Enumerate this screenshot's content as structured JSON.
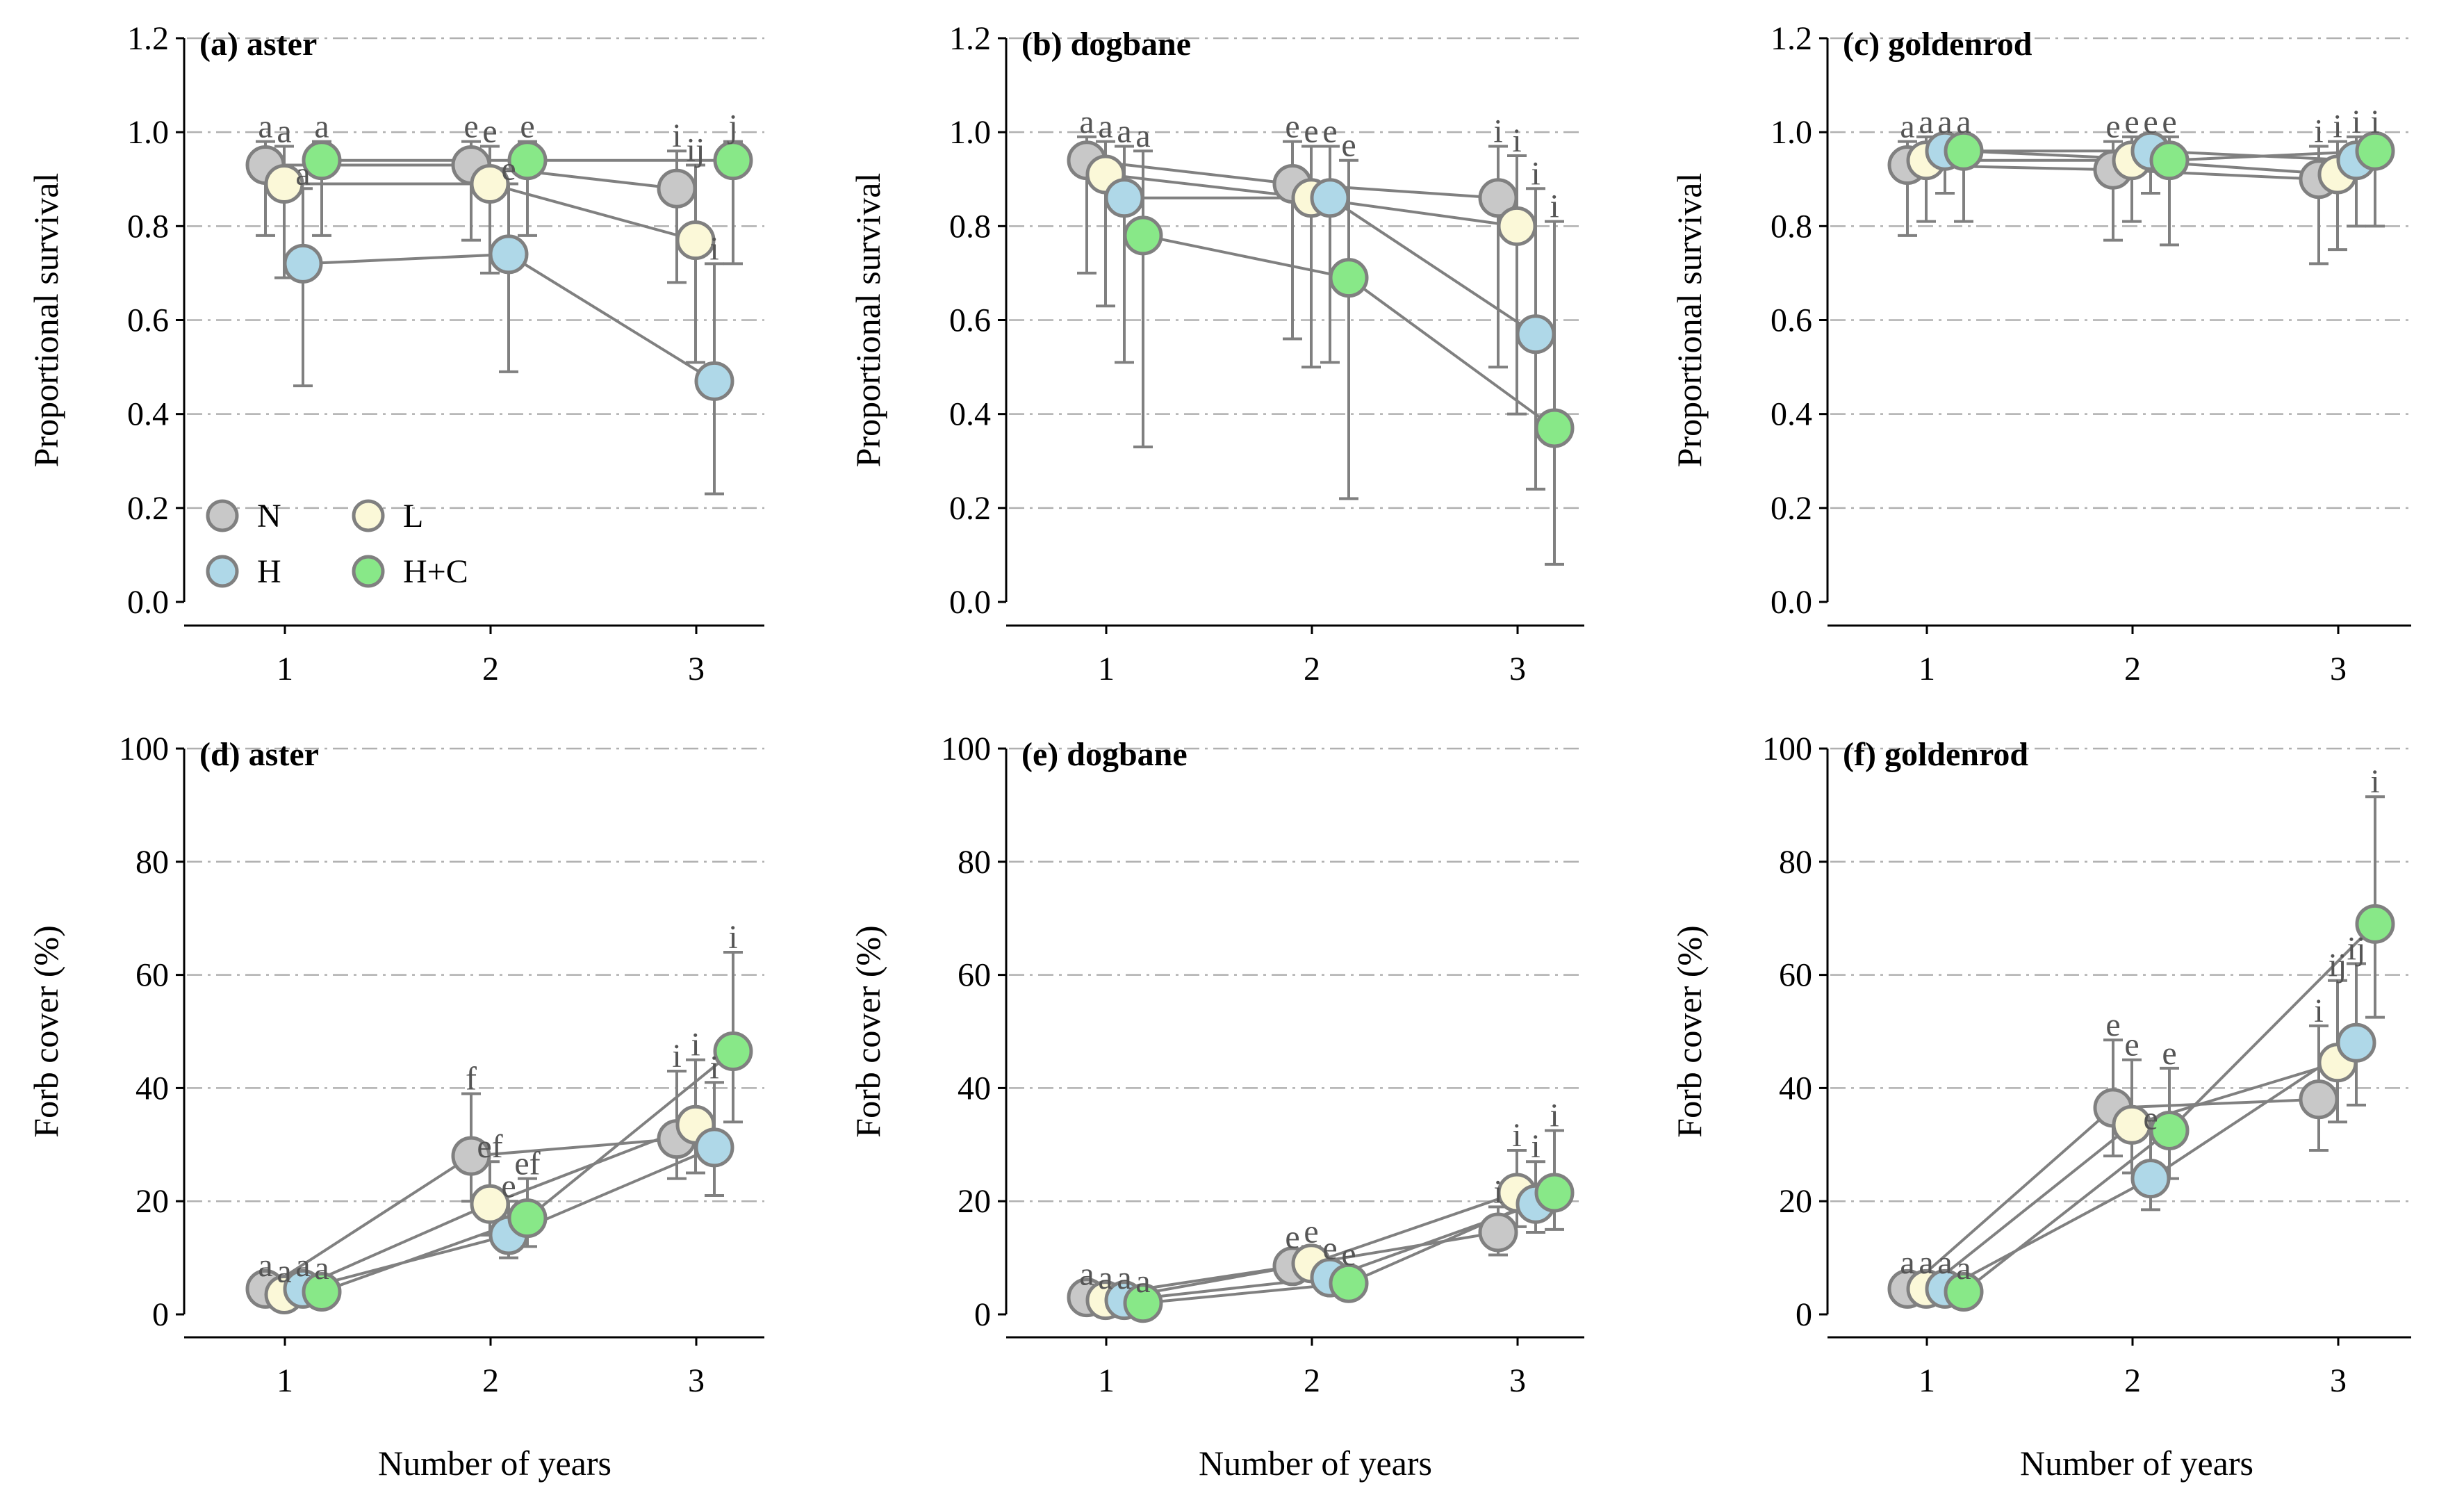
{
  "figure": {
    "x_axis_label": "Number of years",
    "legend": [
      {
        "key": "N",
        "label": "N",
        "color": "#c8c8c8"
      },
      {
        "key": "L",
        "label": "L",
        "color": "#fbf8d8"
      },
      {
        "key": "H",
        "label": "H",
        "color": "#afd8e8"
      },
      {
        "key": "HC",
        "label": "H+C",
        "color": "#88e888"
      }
    ]
  },
  "chart_data": [
    {
      "panel": "(a) aster",
      "type": "scatter",
      "ylabel": "Proportional survival",
      "ylim": [
        0,
        1.2
      ],
      "yticks": [
        "0.0",
        "0.2",
        "0.4",
        "0.6",
        "0.8",
        "1.0",
        "1.2"
      ],
      "x": [
        1,
        2,
        3
      ],
      "xticks": [
        "1",
        "2",
        "3"
      ],
      "show_legend": true,
      "series": [
        {
          "name": "N",
          "values": [
            0.93,
            0.93,
            0.88
          ],
          "err_low": [
            0.78,
            0.77,
            0.68
          ],
          "err_high": [
            0.98,
            0.98,
            0.96
          ],
          "letters": [
            "a",
            "e",
            "i"
          ]
        },
        {
          "name": "L",
          "values": [
            0.89,
            0.89,
            0.77
          ],
          "err_low": [
            0.69,
            0.7,
            0.51
          ],
          "err_high": [
            0.97,
            0.97,
            0.93
          ],
          "letters": [
            "a",
            "e",
            "ij"
          ]
        },
        {
          "name": "H",
          "values": [
            0.72,
            0.74,
            0.47
          ],
          "err_low": [
            0.46,
            0.49,
            0.23
          ],
          "err_high": [
            0.88,
            0.89,
            0.72
          ],
          "letters": [
            "a",
            "e",
            "i"
          ]
        },
        {
          "name": "H+C",
          "values": [
            0.94,
            0.94,
            0.94
          ],
          "err_low": [
            0.78,
            0.78,
            0.72
          ],
          "err_high": [
            0.98,
            0.98,
            0.98
          ],
          "letters": [
            "a",
            "e",
            "j"
          ]
        }
      ]
    },
    {
      "panel": "(b) dogbane",
      "type": "scatter",
      "ylabel": "Proportional survival",
      "ylim": [
        0,
        1.2
      ],
      "yticks": [
        "0.0",
        "0.2",
        "0.4",
        "0.6",
        "0.8",
        "1.0",
        "1.2"
      ],
      "x": [
        1,
        2,
        3
      ],
      "xticks": [
        "1",
        "2",
        "3"
      ],
      "show_legend": false,
      "series": [
        {
          "name": "N",
          "values": [
            0.94,
            0.89,
            0.86
          ],
          "err_low": [
            0.7,
            0.56,
            0.5
          ],
          "err_high": [
            0.99,
            0.98,
            0.97
          ],
          "letters": [
            "a",
            "e",
            "i"
          ]
        },
        {
          "name": "L",
          "values": [
            0.91,
            0.86,
            0.8
          ],
          "err_low": [
            0.63,
            0.5,
            0.4
          ],
          "err_high": [
            0.98,
            0.97,
            0.95
          ],
          "letters": [
            "a",
            "e",
            "i"
          ]
        },
        {
          "name": "H",
          "values": [
            0.86,
            0.86,
            0.57
          ],
          "err_low": [
            0.51,
            0.51,
            0.24
          ],
          "err_high": [
            0.97,
            0.97,
            0.88
          ],
          "letters": [
            "a",
            "e",
            "i"
          ]
        },
        {
          "name": "H+C",
          "values": [
            0.78,
            0.69,
            0.37
          ],
          "err_low": [
            0.33,
            0.22,
            0.08
          ],
          "err_high": [
            0.96,
            0.94,
            0.81
          ],
          "letters": [
            "a",
            "e",
            "i"
          ]
        }
      ]
    },
    {
      "panel": "(c) goldenrod",
      "type": "scatter",
      "ylabel": "Proportional survival",
      "ylim": [
        0,
        1.2
      ],
      "yticks": [
        "0.0",
        "0.2",
        "0.4",
        "0.6",
        "0.8",
        "1.0",
        "1.2"
      ],
      "x": [
        1,
        2,
        3
      ],
      "xticks": [
        "1",
        "2",
        "3"
      ],
      "show_legend": false,
      "series": [
        {
          "name": "N",
          "values": [
            0.93,
            0.92,
            0.9
          ],
          "err_low": [
            0.78,
            0.77,
            0.72
          ],
          "err_high": [
            0.98,
            0.98,
            0.97
          ],
          "letters": [
            "a",
            "e",
            "i"
          ]
        },
        {
          "name": "L",
          "values": [
            0.94,
            0.94,
            0.91
          ],
          "err_low": [
            0.81,
            0.81,
            0.75
          ],
          "err_high": [
            0.99,
            0.99,
            0.98
          ],
          "letters": [
            "a",
            "e",
            "i"
          ]
        },
        {
          "name": "H",
          "values": [
            0.96,
            0.96,
            0.94
          ],
          "err_low": [
            0.87,
            0.87,
            0.8
          ],
          "err_high": [
            0.99,
            0.99,
            0.99
          ],
          "letters": [
            "a",
            "e",
            "i"
          ]
        },
        {
          "name": "H+C",
          "values": [
            0.96,
            0.94,
            0.96
          ],
          "err_low": [
            0.81,
            0.76,
            0.8
          ],
          "err_high": [
            0.99,
            0.99,
            0.99
          ],
          "letters": [
            "a",
            "e",
            "i"
          ]
        }
      ]
    },
    {
      "panel": "(d) aster",
      "type": "scatter",
      "ylabel": "Forb cover (%)",
      "ylim": [
        0,
        100
      ],
      "yticks": [
        "0",
        "20",
        "40",
        "60",
        "80",
        "100"
      ],
      "x": [
        1,
        2,
        3
      ],
      "xticks": [
        "1",
        "2",
        "3"
      ],
      "show_legend": false,
      "series": [
        {
          "name": "N",
          "values": [
            4.5,
            28,
            31
          ],
          "err_low": [
            3.0,
            20,
            24
          ],
          "err_high": [
            6.0,
            39,
            43
          ],
          "letters": [
            "a",
            "f",
            "i"
          ]
        },
        {
          "name": "L",
          "values": [
            3.5,
            19.5,
            33.5
          ],
          "err_low": [
            2.5,
            14,
            25
          ],
          "err_high": [
            5.0,
            27,
            45
          ],
          "letters": [
            "a",
            "ef",
            "i"
          ]
        },
        {
          "name": "H",
          "values": [
            4.5,
            14,
            29.5
          ],
          "err_low": [
            3.0,
            10,
            21
          ],
          "err_high": [
            6.0,
            20,
            41
          ],
          "letters": [
            "a",
            "e",
            "i"
          ]
        },
        {
          "name": "H+C",
          "values": [
            4.0,
            17,
            46.5
          ],
          "err_low": [
            3.0,
            12,
            34
          ],
          "err_high": [
            5.5,
            24,
            64
          ],
          "letters": [
            "a",
            "ef",
            "i"
          ]
        }
      ]
    },
    {
      "panel": "(e) dogbane",
      "type": "scatter",
      "ylabel": "Forb cover (%)",
      "ylim": [
        0,
        100
      ],
      "yticks": [
        "0",
        "20",
        "40",
        "60",
        "80",
        "100"
      ],
      "x": [
        1,
        2,
        3
      ],
      "xticks": [
        "1",
        "2",
        "3"
      ],
      "show_legend": false,
      "series": [
        {
          "name": "N",
          "values": [
            3.0,
            8.5,
            14.5
          ],
          "err_low": [
            1.8,
            6.0,
            10.5
          ],
          "err_high": [
            4.5,
            11.0,
            19.0
          ],
          "letters": [
            "a",
            "e",
            "i"
          ]
        },
        {
          "name": "L",
          "values": [
            2.5,
            9.0,
            21.5
          ],
          "err_low": [
            1.5,
            6.5,
            15.5
          ],
          "err_high": [
            3.8,
            12.0,
            29.0
          ],
          "letters": [
            "a",
            "e",
            "i"
          ]
        },
        {
          "name": "H",
          "values": [
            2.5,
            6.5,
            19.5
          ],
          "err_low": [
            1.5,
            4.5,
            14.5
          ],
          "err_high": [
            3.8,
            9.0,
            27.0
          ],
          "letters": [
            "a",
            "e",
            "i"
          ]
        },
        {
          "name": "H+C",
          "values": [
            2.0,
            5.5,
            21.5
          ],
          "err_low": [
            1.2,
            3.5,
            15.0
          ],
          "err_high": [
            3.2,
            8.0,
            32.5
          ],
          "letters": [
            "a",
            "e",
            "i"
          ]
        }
      ]
    },
    {
      "panel": "(f) goldenrod",
      "type": "scatter",
      "ylabel": "Forb cover (%)",
      "ylim": [
        0,
        100
      ],
      "yticks": [
        "0",
        "20",
        "40",
        "60",
        "80",
        "100"
      ],
      "x": [
        1,
        2,
        3
      ],
      "xticks": [
        "1",
        "2",
        "3"
      ],
      "show_legend": false,
      "series": [
        {
          "name": "N",
          "values": [
            4.5,
            36.5,
            38
          ],
          "err_low": [
            3.0,
            28,
            29
          ],
          "err_high": [
            6.5,
            48.5,
            51
          ],
          "letters": [
            "a",
            "e",
            "i"
          ]
        },
        {
          "name": "L",
          "values": [
            4.5,
            33.5,
            44.5
          ],
          "err_low": [
            3.0,
            25,
            34
          ],
          "err_high": [
            6.5,
            45,
            59
          ],
          "letters": [
            "a",
            "e",
            "ij"
          ]
        },
        {
          "name": "H",
          "values": [
            4.5,
            24,
            48
          ],
          "err_low": [
            3.0,
            18.5,
            37
          ],
          "err_high": [
            6.5,
            32,
            62
          ],
          "letters": [
            "a",
            "e",
            "ij"
          ]
        },
        {
          "name": "H+C",
          "values": [
            4.0,
            32.5,
            69
          ],
          "err_low": [
            2.8,
            24,
            52.5
          ],
          "err_high": [
            5.5,
            43.5,
            91.5
          ],
          "letters": [
            "a",
            "e",
            "i"
          ]
        }
      ]
    }
  ]
}
